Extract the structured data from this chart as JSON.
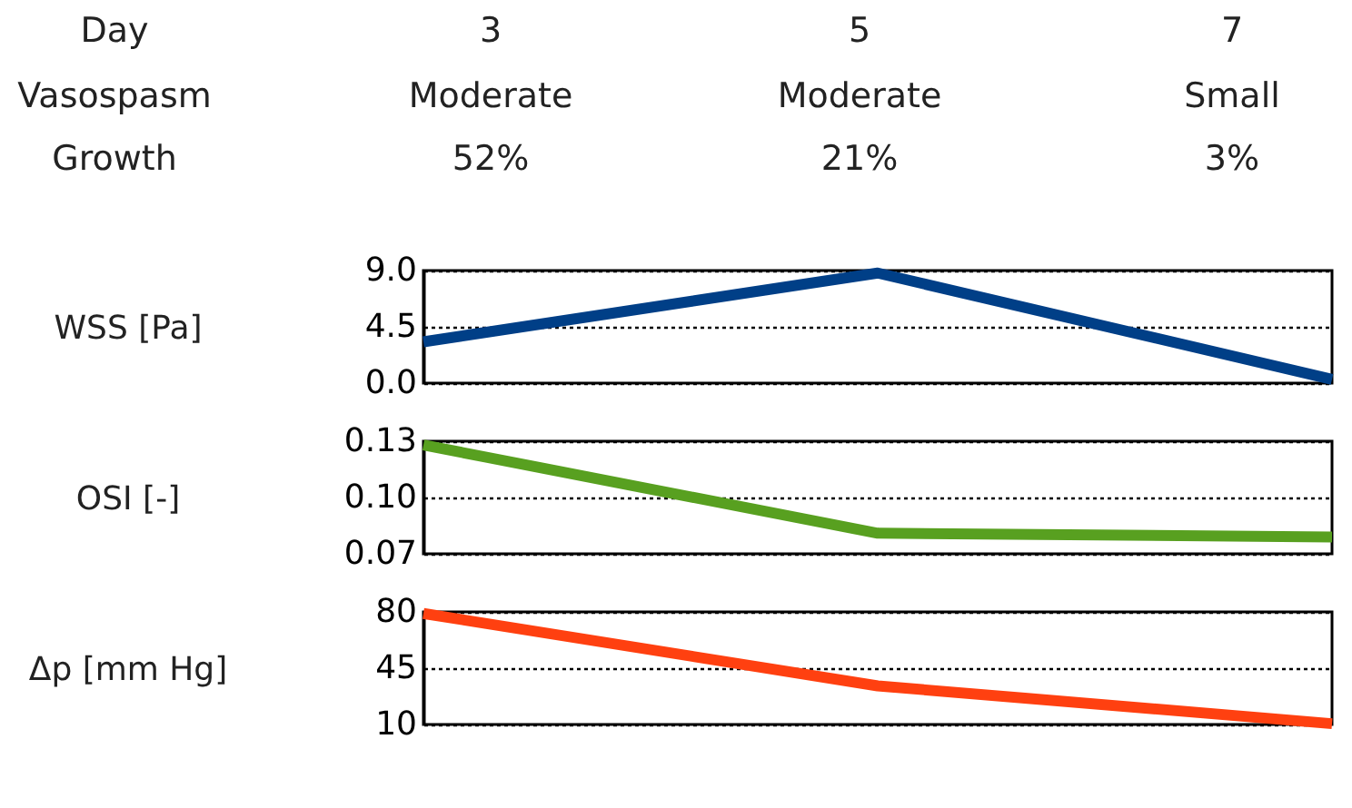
{
  "chart_data": [
    {
      "type": "other",
      "annotations": [
        "Day",
        "3",
        "5",
        "7",
        "Vasospasm",
        "Moderate",
        "Moderate",
        "Small",
        "Growth",
        "52%",
        "21%",
        "3%"
      ]
    },
    {
      "type": "line",
      "ylabel": "WSS [Pa]",
      "categories": [
        null,
        null,
        null
      ],
      "series": [
        {
          "color": "#003f87",
          "values": [
            3.3,
            8.8,
            0.3
          ]
        }
      ],
      "ylim": [
        0,
        9
      ],
      "yticks": [
        {
          "value": 0,
          "label": "0.0"
        },
        4.5,
        {
          "value": 9,
          "label": "9.0"
        }
      ],
      "grid": "y",
      "tick_labels": "y",
      "line_style": "solid"
    },
    {
      "type": "line",
      "ylabel": "OSI [-]",
      "categories": [
        null,
        null,
        null
      ],
      "series": [
        {
          "color": "#58a020",
          "values": [
            0.128,
            0.081,
            0.079
          ]
        }
      ],
      "ylim": [
        0.07,
        0.13
      ],
      "yticks": [
        0.07,
        {
          "value": 0.1,
          "label": "0.10"
        },
        0.13
      ],
      "grid": "y",
      "tick_labels": "y",
      "line_style": "solid"
    },
    {
      "type": "line",
      "ylabel": "Δp [mm Hg]",
      "categories": [
        null,
        null,
        null
      ],
      "series": [
        {
          "color": "#ff4010",
          "values": [
            79,
            34,
            10.5
          ]
        }
      ],
      "ylim": [
        10,
        80
      ],
      "yticks": [
        10,
        45,
        80
      ],
      "grid": "y",
      "tick_labels": "y",
      "line_style": "solid"
    }
  ]
}
